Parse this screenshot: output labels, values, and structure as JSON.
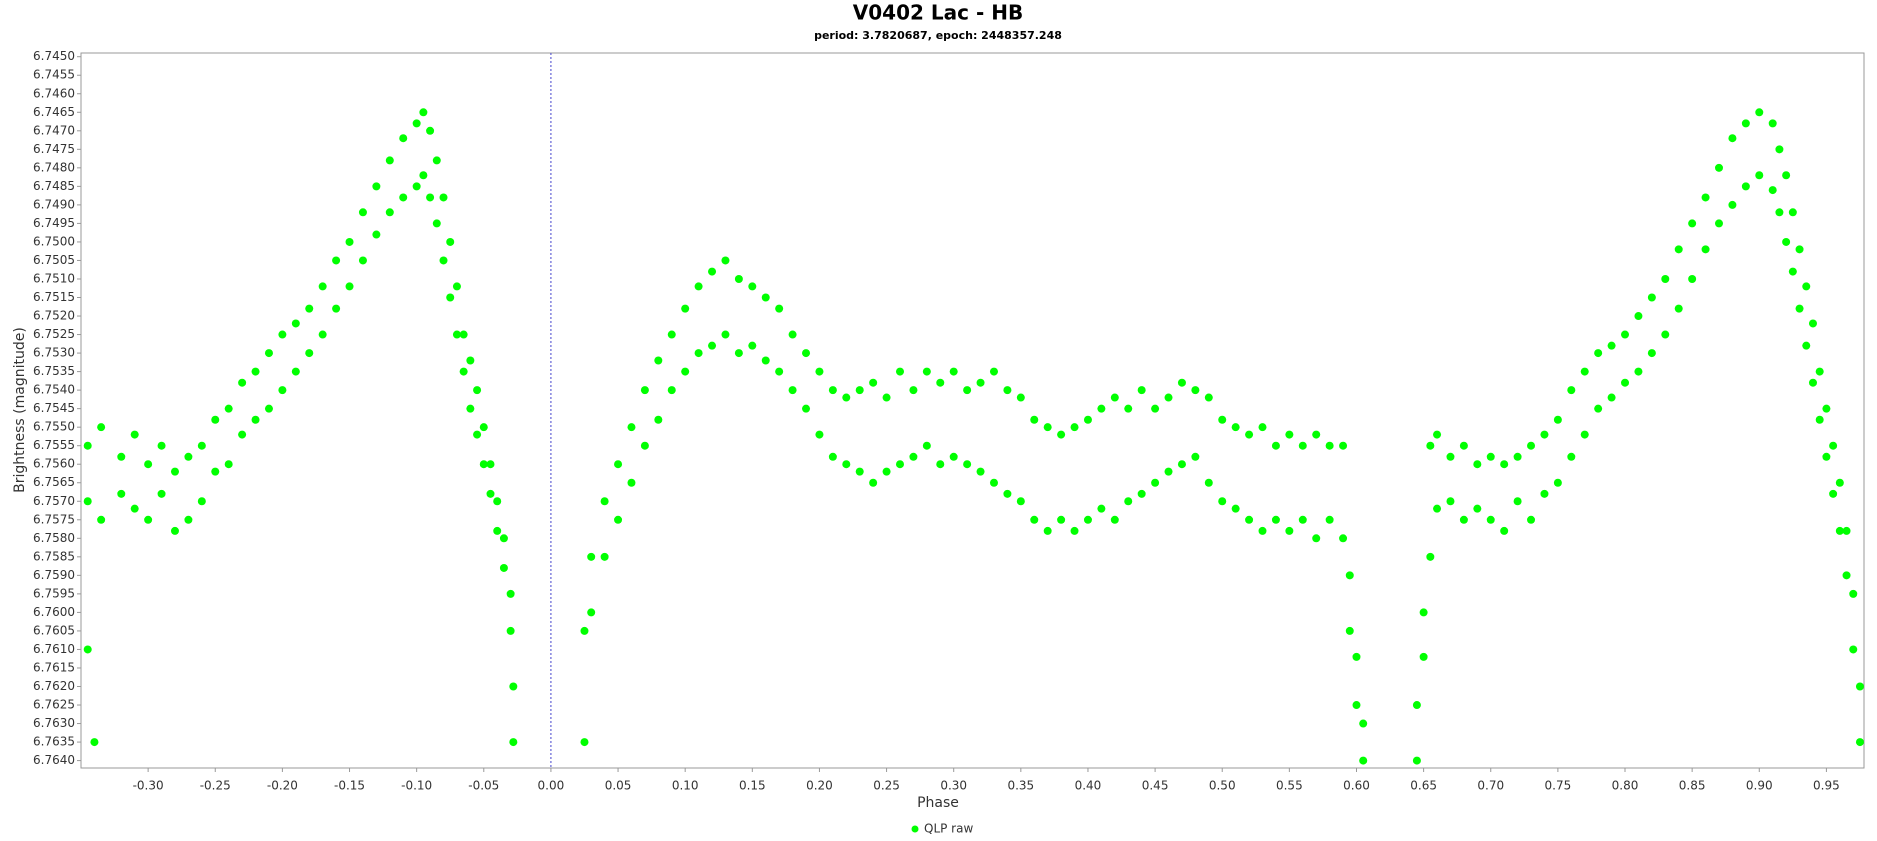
{
  "chart_data": {
    "type": "scatter",
    "title": "V0402 Lac - HB",
    "subtitle": "period: 3.7820687, epoch: 2448357.248",
    "x_label": "Phase",
    "y_label": "Brightness (magnitude)",
    "xlim": [
      -0.35,
      0.978
    ],
    "ylim": [
      6.7449,
      6.7642
    ],
    "y_inverted": true,
    "grid": false,
    "legend": "bottom",
    "vline": 0,
    "xticks": [
      {
        "value": -0.3,
        "label": "-0.30"
      },
      -0.25,
      {
        "value": -0.2,
        "label": "-0.20"
      },
      -0.15,
      {
        "value": -0.1,
        "label": "-0.10"
      },
      -0.05,
      {
        "value": 0,
        "label": "0.00"
      },
      0.05,
      {
        "value": 0.1,
        "label": "0.10"
      },
      0.15,
      {
        "value": 0.2,
        "label": "0.20"
      },
      0.25,
      {
        "value": 0.3,
        "label": "0.30"
      },
      0.35,
      {
        "value": 0.4,
        "label": "0.40"
      },
      0.45,
      {
        "value": 0.5,
        "label": "0.50"
      },
      0.55,
      {
        "value": 0.6,
        "label": "0.60"
      },
      0.65,
      {
        "value": 0.7,
        "label": "0.70"
      },
      0.75,
      {
        "value": 0.8,
        "label": "0.80"
      },
      0.85,
      {
        "value": 0.9,
        "label": "0.90"
      },
      0.95
    ],
    "yticks": [
      {
        "value": 6.745,
        "label": "6.7450"
      },
      6.7455,
      {
        "value": 6.746,
        "label": "6.7460"
      },
      6.7465,
      {
        "value": 6.747,
        "label": "6.7470"
      },
      6.7475,
      {
        "value": 6.748,
        "label": "6.7480"
      },
      6.7485,
      {
        "value": 6.749,
        "label": "6.7490"
      },
      6.7495,
      {
        "value": 6.75,
        "label": "6.7500"
      },
      6.7505,
      {
        "value": 6.751,
        "label": "6.7510"
      },
      6.7515,
      {
        "value": 6.752,
        "label": "6.7520"
      },
      6.7525,
      {
        "value": 6.753,
        "label": "6.7530"
      },
      6.7535,
      {
        "value": 6.754,
        "label": "6.7540"
      },
      6.7545,
      {
        "value": 6.755,
        "label": "6.7550"
      },
      6.7555,
      {
        "value": 6.756,
        "label": "6.7560"
      },
      6.7565,
      {
        "value": 6.757,
        "label": "6.7570"
      },
      6.7575,
      {
        "value": 6.758,
        "label": "6.7580"
      },
      6.7585,
      {
        "value": 6.759,
        "label": "6.7590"
      },
      6.7595,
      {
        "value": 6.76,
        "label": "6.7600"
      },
      6.7605,
      {
        "value": 6.761,
        "label": "6.7610"
      },
      6.7615,
      {
        "value": 6.762,
        "label": "6.7620"
      },
      6.7625,
      {
        "value": 6.763,
        "label": "6.7630"
      },
      6.7635,
      {
        "value": 6.764,
        "label": "6.7640"
      }
    ],
    "series": [
      {
        "name": "QLP raw",
        "color": "#00ff00",
        "x": [
          -0.345,
          -0.345,
          -0.345,
          -0.34,
          -0.335,
          -0.335,
          -0.32,
          -0.32,
          -0.31,
          -0.31,
          -0.3,
          -0.3,
          -0.29,
          -0.29,
          -0.28,
          -0.28,
          -0.27,
          -0.27,
          -0.26,
          -0.26,
          -0.25,
          -0.25,
          -0.24,
          -0.24,
          -0.23,
          -0.23,
          -0.22,
          -0.22,
          -0.21,
          -0.21,
          -0.2,
          -0.2,
          -0.19,
          -0.19,
          -0.18,
          -0.18,
          -0.17,
          -0.17,
          -0.16,
          -0.16,
          -0.15,
          -0.15,
          -0.14,
          -0.14,
          -0.13,
          -0.13,
          -0.12,
          -0.12,
          -0.11,
          -0.11,
          -0.1,
          -0.1,
          -0.095,
          -0.095,
          -0.09,
          -0.09,
          -0.085,
          -0.085,
          -0.08,
          -0.08,
          -0.075,
          -0.075,
          -0.07,
          -0.07,
          -0.065,
          -0.065,
          -0.06,
          -0.06,
          -0.055,
          -0.055,
          -0.05,
          -0.05,
          -0.045,
          -0.045,
          -0.04,
          -0.04,
          -0.035,
          -0.035,
          -0.03,
          -0.03,
          -0.028,
          -0.028,
          0.025,
          0.025,
          0.03,
          0.03,
          0.04,
          0.04,
          0.05,
          0.05,
          0.06,
          0.06,
          0.07,
          0.07,
          0.08,
          0.08,
          0.09,
          0.09,
          0.1,
          0.1,
          0.11,
          0.11,
          0.12,
          0.12,
          0.13,
          0.13,
          0.14,
          0.14,
          0.15,
          0.15,
          0.16,
          0.16,
          0.17,
          0.17,
          0.18,
          0.18,
          0.19,
          0.19,
          0.2,
          0.2,
          0.21,
          0.21,
          0.22,
          0.22,
          0.23,
          0.23,
          0.24,
          0.24,
          0.25,
          0.25,
          0.26,
          0.26,
          0.27,
          0.27,
          0.28,
          0.28,
          0.29,
          0.29,
          0.3,
          0.3,
          0.31,
          0.31,
          0.32,
          0.32,
          0.33,
          0.33,
          0.34,
          0.34,
          0.35,
          0.35,
          0.36,
          0.36,
          0.37,
          0.37,
          0.38,
          0.38,
          0.39,
          0.39,
          0.4,
          0.4,
          0.41,
          0.41,
          0.42,
          0.42,
          0.43,
          0.43,
          0.44,
          0.44,
          0.45,
          0.45,
          0.46,
          0.46,
          0.47,
          0.47,
          0.48,
          0.48,
          0.49,
          0.49,
          0.5,
          0.5,
          0.51,
          0.51,
          0.52,
          0.52,
          0.53,
          0.53,
          0.54,
          0.54,
          0.55,
          0.55,
          0.56,
          0.56,
          0.57,
          0.57,
          0.58,
          0.58,
          0.59,
          0.59,
          0.595,
          0.595,
          0.6,
          0.6,
          0.605,
          0.605,
          0.645,
          0.645,
          0.65,
          0.65,
          0.655,
          0.655,
          0.66,
          0.66,
          0.67,
          0.67,
          0.68,
          0.68,
          0.69,
          0.69,
          0.7,
          0.7,
          0.71,
          0.71,
          0.72,
          0.72,
          0.73,
          0.73,
          0.74,
          0.74,
          0.75,
          0.75,
          0.76,
          0.76,
          0.77,
          0.77,
          0.78,
          0.78,
          0.79,
          0.79,
          0.8,
          0.8,
          0.81,
          0.81,
          0.82,
          0.82,
          0.83,
          0.83,
          0.84,
          0.84,
          0.85,
          0.85,
          0.86,
          0.86,
          0.87,
          0.87,
          0.88,
          0.88,
          0.89,
          0.89,
          0.9,
          0.9,
          0.91,
          0.91,
          0.915,
          0.915,
          0.92,
          0.92,
          0.925,
          0.925,
          0.93,
          0.93,
          0.935,
          0.935,
          0.94,
          0.94,
          0.945,
          0.945,
          0.95,
          0.95,
          0.955,
          0.955,
          0.96,
          0.96,
          0.965,
          0.965,
          0.97,
          0.97,
          0.975,
          0.975
        ],
        "values": [
          6.7555,
          6.757,
          6.761,
          6.7635,
          6.755,
          6.7575,
          6.7558,
          6.7568,
          6.7552,
          6.7572,
          6.756,
          6.7575,
          6.7555,
          6.7568,
          6.7562,
          6.7578,
          6.7558,
          6.7575,
          6.7555,
          6.757,
          6.7548,
          6.7562,
          6.7545,
          6.756,
          6.7538,
          6.7552,
          6.7535,
          6.7548,
          6.753,
          6.7545,
          6.7525,
          6.754,
          6.7522,
          6.7535,
          6.7518,
          6.753,
          6.7512,
          6.7525,
          6.7505,
          6.7518,
          6.75,
          6.7512,
          6.7492,
          6.7505,
          6.7485,
          6.7498,
          6.7478,
          6.7492,
          6.7472,
          6.7488,
          6.7468,
          6.7485,
          6.7465,
          6.7482,
          6.747,
          6.7488,
          6.7478,
          6.7495,
          6.7488,
          6.7505,
          6.75,
          6.7515,
          6.7512,
          6.7525,
          6.7525,
          6.7535,
          6.7532,
          6.7545,
          6.754,
          6.7552,
          6.755,
          6.756,
          6.756,
          6.7568,
          6.757,
          6.7578,
          6.758,
          6.7588,
          6.7595,
          6.7605,
          6.762,
          6.7635,
          6.7605,
          6.7635,
          6.7585,
          6.76,
          6.757,
          6.7585,
          6.756,
          6.7575,
          6.755,
          6.7565,
          6.754,
          6.7555,
          6.7532,
          6.7548,
          6.7525,
          6.754,
          6.7518,
          6.7535,
          6.7512,
          6.753,
          6.7508,
          6.7528,
          6.7505,
          6.7525,
          6.751,
          6.753,
          6.7512,
          6.7528,
          6.7515,
          6.7532,
          6.7518,
          6.7535,
          6.7525,
          6.754,
          6.753,
          6.7545,
          6.7535,
          6.7552,
          6.754,
          6.7558,
          6.7542,
          6.756,
          6.754,
          6.7562,
          6.7538,
          6.7565,
          6.7542,
          6.7562,
          6.7535,
          6.756,
          6.754,
          6.7558,
          6.7535,
          6.7555,
          6.7538,
          6.756,
          6.7535,
          6.7558,
          6.754,
          6.756,
          6.7538,
          6.7562,
          6.7535,
          6.7565,
          6.754,
          6.7568,
          6.7542,
          6.757,
          6.7548,
          6.7575,
          6.755,
          6.7578,
          6.7552,
          6.7575,
          6.755,
          6.7578,
          6.7548,
          6.7575,
          6.7545,
          6.7572,
          6.7542,
          6.7575,
          6.7545,
          6.757,
          6.754,
          6.7568,
          6.7545,
          6.7565,
          6.7542,
          6.7562,
          6.7538,
          6.756,
          6.754,
          6.7558,
          6.7542,
          6.7565,
          6.7548,
          6.757,
          6.755,
          6.7572,
          6.7552,
          6.7575,
          6.755,
          6.7578,
          6.7555,
          6.7575,
          6.7552,
          6.7578,
          6.7555,
          6.7575,
          6.7552,
          6.758,
          6.7555,
          6.7575,
          6.7555,
          6.758,
          6.759,
          6.7605,
          6.7612,
          6.7625,
          6.763,
          6.764,
          6.764,
          6.7625,
          6.76,
          6.7612,
          6.7555,
          6.7585,
          6.7552,
          6.7572,
          6.7558,
          6.757,
          6.7555,
          6.7575,
          6.756,
          6.7572,
          6.7558,
          6.7575,
          6.756,
          6.7578,
          6.7558,
          6.757,
          6.7555,
          6.7575,
          6.7552,
          6.7568,
          6.7548,
          6.7565,
          6.754,
          6.7558,
          6.7535,
          6.7552,
          6.753,
          6.7545,
          6.7528,
          6.7542,
          6.7525,
          6.7538,
          6.752,
          6.7535,
          6.7515,
          6.753,
          6.751,
          6.7525,
          6.7502,
          6.7518,
          6.7495,
          6.751,
          6.7488,
          6.7502,
          6.748,
          6.7495,
          6.7472,
          6.749,
          6.7468,
          6.7485,
          6.7465,
          6.7482,
          6.7468,
          6.7486,
          6.7475,
          6.7492,
          6.7482,
          6.75,
          6.7492,
          6.7508,
          6.7502,
          6.7518,
          6.7512,
          6.7528,
          6.7522,
          6.7538,
          6.7535,
          6.7548,
          6.7545,
          6.7558,
          6.7555,
          6.7568,
          6.7565,
          6.7578,
          6.7578,
          6.759,
          6.7595,
          6.761,
          6.762,
          6.7635
        ]
      }
    ]
  }
}
